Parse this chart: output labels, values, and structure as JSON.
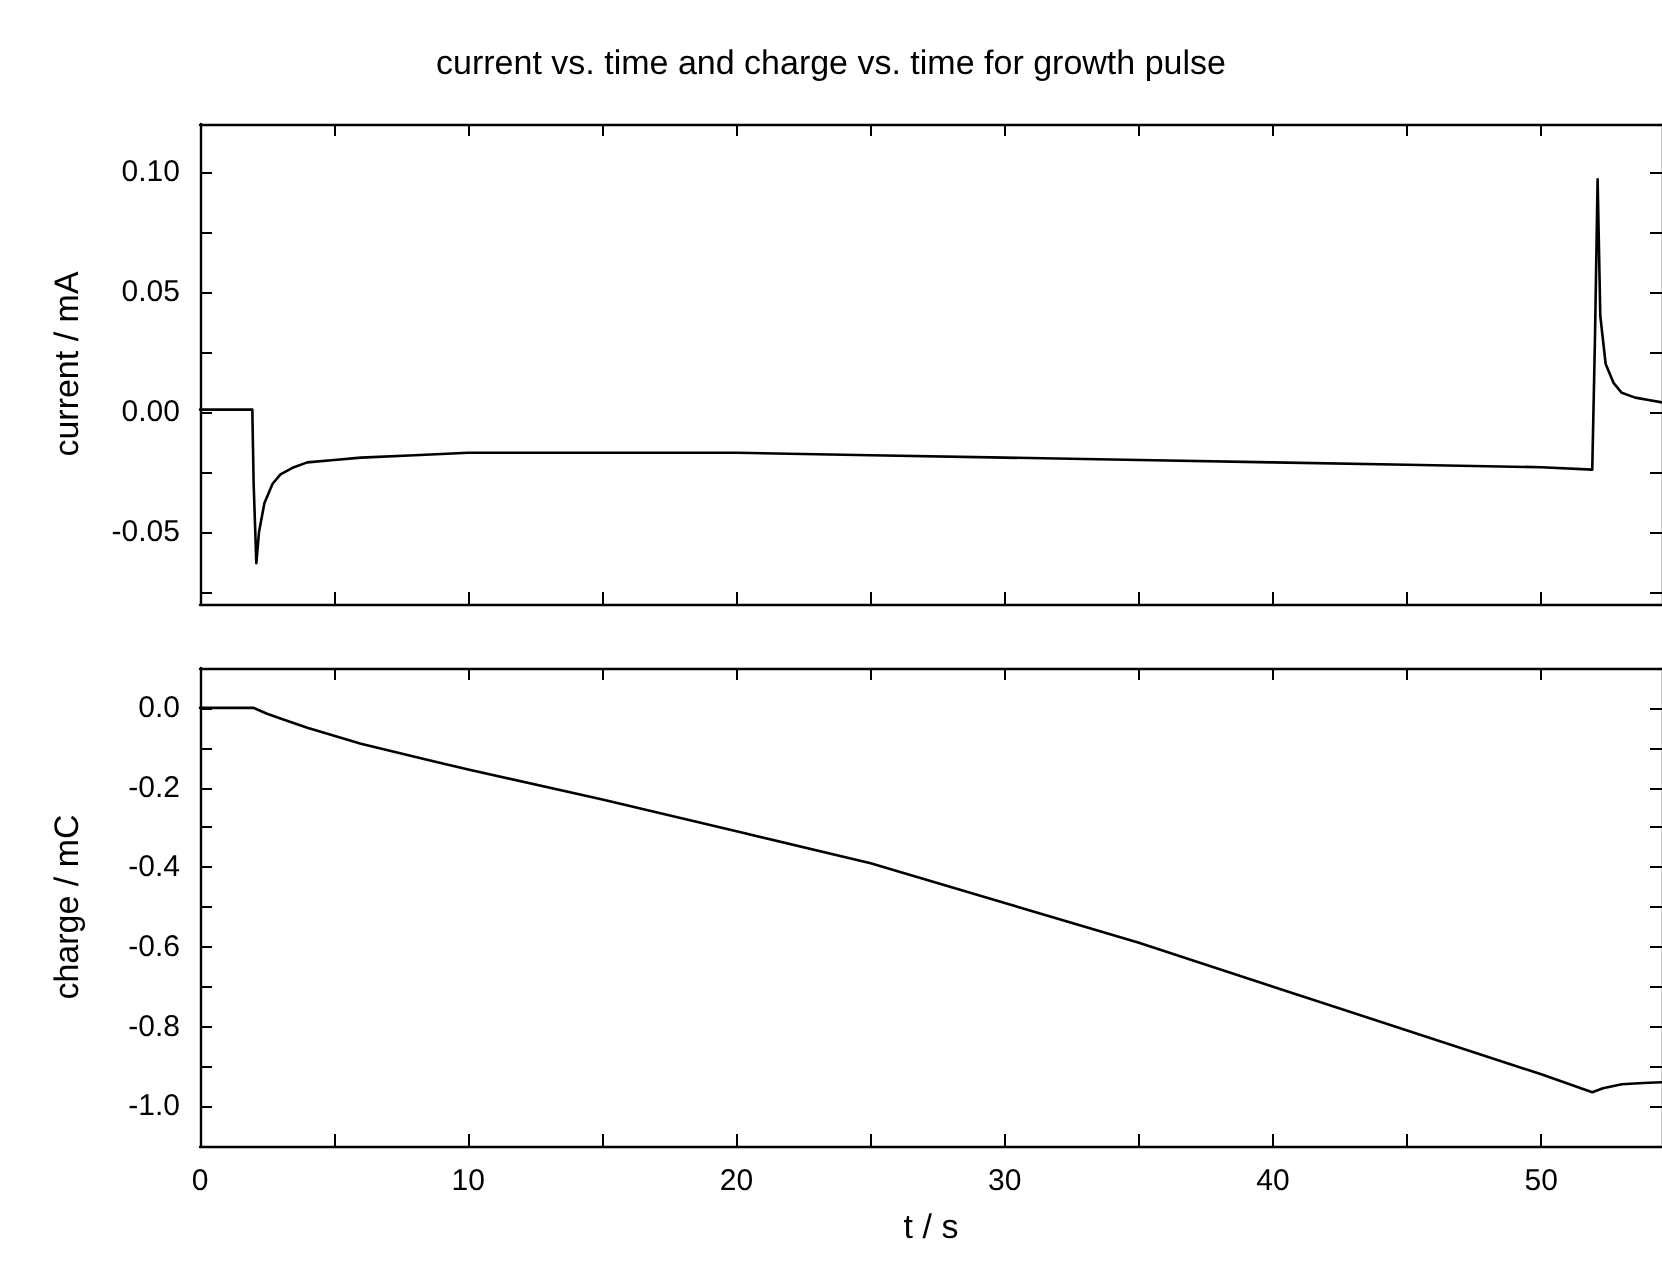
{
  "chart_data": [
    {
      "type": "line",
      "title": "current vs. time and charge vs. time for growth pulse",
      "ylabel": "current / mA",
      "tick_labels": "y",
      "marker": "none",
      "line_style": "solid",
      "xlim": [
        0,
        54.5
      ],
      "xticks": [
        0,
        {
          "value": 5,
          "label": null
        },
        10,
        {
          "value": 15,
          "label": null
        },
        20,
        {
          "value": 25,
          "label": null
        },
        30,
        {
          "value": 35,
          "label": null
        },
        40,
        {
          "value": 45,
          "label": null
        },
        50
      ],
      "ylim": [
        -0.08,
        0.12
      ],
      "yticks": [
        {
          "value": -0.075,
          "label": null
        },
        {
          "value": -0.05,
          "label": "-0.05"
        },
        {
          "value": -0.025,
          "label": null
        },
        {
          "value": 0,
          "label": "0.00"
        },
        {
          "value": 0.025,
          "label": null
        },
        {
          "value": 0.05,
          "label": "0.05"
        },
        {
          "value": 0.075,
          "label": null
        },
        {
          "value": 0.1,
          "label": "0.10"
        }
      ],
      "series": [
        {
          "color": "#000000",
          "x": [
            0,
            1,
            1.95,
            2.0,
            2.1,
            2.2,
            2.4,
            2.7,
            3,
            3.5,
            4,
            5,
            6,
            8,
            10,
            15,
            20,
            25,
            30,
            35,
            40,
            45,
            50,
            51.9,
            52.0,
            52.1,
            52.2,
            52.4,
            52.7,
            53,
            53.5,
            54,
            54.5
          ],
          "values": [
            0.001,
            0.001,
            0.001,
            -0.03,
            -0.063,
            -0.05,
            -0.038,
            -0.03,
            -0.026,
            -0.023,
            -0.021,
            -0.02,
            -0.019,
            -0.018,
            -0.017,
            -0.017,
            -0.017,
            -0.018,
            -0.019,
            -0.02,
            -0.021,
            -0.022,
            -0.023,
            -0.024,
            0.03,
            0.097,
            0.04,
            0.02,
            0.012,
            0.008,
            0.006,
            0.005,
            0.004
          ]
        }
      ]
    },
    {
      "type": "line",
      "xlabel": "t / s",
      "ylabel": "charge / mC",
      "marker": "none",
      "line_style": "solid",
      "xlim": [
        0,
        54.5
      ],
      "xticks": [
        0,
        {
          "value": 5,
          "label": null
        },
        10,
        {
          "value": 15,
          "label": null
        },
        20,
        {
          "value": 25,
          "label": null
        },
        30,
        {
          "value": 35,
          "label": null
        },
        40,
        {
          "value": 45,
          "label": null
        },
        50
      ],
      "ylim": [
        -1.1,
        0.1
      ],
      "yticks": [
        {
          "value": -1,
          "label": "-1.0"
        },
        {
          "value": -0.9,
          "label": null
        },
        {
          "value": -0.8,
          "label": "-0.8"
        },
        {
          "value": -0.7,
          "label": null
        },
        {
          "value": -0.6,
          "label": "-0.6"
        },
        {
          "value": -0.5,
          "label": null
        },
        {
          "value": -0.4,
          "label": "-0.4"
        },
        {
          "value": -0.3,
          "label": null
        },
        {
          "value": -0.2,
          "label": "-0.2"
        },
        {
          "value": -0.1,
          "label": null
        },
        {
          "value": 0,
          "label": "0.0"
        }
      ],
      "series": [
        {
          "color": "#000000",
          "x": [
            0,
            1,
            2,
            2.5,
            3,
            4,
            6,
            8,
            10,
            15,
            20,
            25,
            30,
            35,
            40,
            45,
            50,
            51.9,
            52.3,
            53,
            53.8,
            54.5
          ],
          "values": [
            0,
            0,
            0,
            -0.015,
            -0.027,
            -0.05,
            -0.09,
            -0.123,
            -0.155,
            -0.23,
            -0.31,
            -0.39,
            -0.49,
            -0.59,
            -0.7,
            -0.81,
            -0.92,
            -0.965,
            -0.955,
            -0.945,
            -0.942,
            -0.94
          ]
        }
      ]
    }
  ]
}
